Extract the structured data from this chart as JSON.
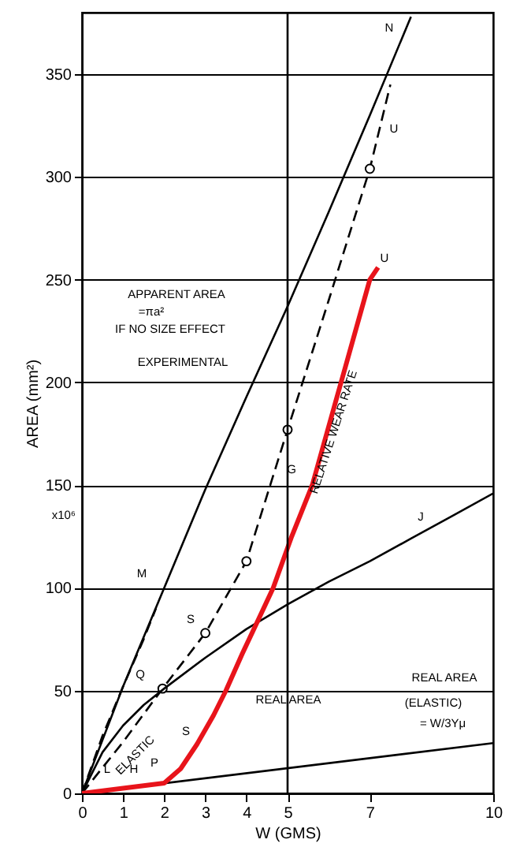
{
  "chart_data": {
    "type": "line",
    "xlabel": "W (GMS)",
    "ylabel": "AREA (mm²)",
    "xlim": [
      0,
      10
    ],
    "ylim": [
      0,
      380
    ],
    "xticks": [
      0,
      1,
      2,
      3,
      4,
      5,
      7,
      10
    ],
    "yticks": [
      0,
      50,
      100,
      150,
      200,
      250,
      300,
      350
    ],
    "grid": "y",
    "ref_lines": [
      {
        "axis": "x",
        "value": 5,
        "color": "#000000",
        "line_style": "solid"
      }
    ],
    "series": [
      {
        "color": "#000000",
        "line_style": "solid",
        "x": [
          0,
          1,
          2,
          3,
          4,
          5,
          6,
          7,
          8
        ],
        "values": [
          0,
          52,
          100,
          148,
          193,
          237,
          283,
          330,
          378
        ]
      },
      {
        "type": "line",
        "color": "#000000",
        "line_style": "dashed",
        "x": [
          0,
          0.5,
          1,
          1.5,
          1.8
        ],
        "values": [
          0,
          28,
          52,
          75,
          90
        ]
      },
      {
        "type": "line",
        "color": "#000000",
        "line_style": "dashed",
        "x": [
          0,
          1,
          1.96,
          3,
          4,
          5,
          6,
          7,
          7.5
        ],
        "values": [
          0,
          25,
          51,
          78,
          113,
          177,
          240,
          304,
          345
        ]
      },
      {
        "type": "scatter",
        "color": "#000000",
        "marker": "circle",
        "x": [
          1.96,
          3,
          4,
          5,
          7
        ],
        "values": [
          51,
          78,
          113,
          177,
          304
        ]
      },
      {
        "type": "line",
        "color": "#000000",
        "line_style": "solid",
        "x": [
          0,
          0.5,
          1,
          1.5,
          2,
          3,
          4,
          5,
          6,
          7,
          8,
          9,
          10
        ],
        "values": [
          0,
          20,
          33,
          43,
          51,
          66,
          80,
          92,
          103,
          113,
          124,
          135,
          146
        ]
      },
      {
        "type": "line",
        "color": "#000000",
        "line_style": "solid",
        "x": [
          0,
          10
        ],
        "values": [
          0,
          24.5
        ]
      },
      {
        "type": "line",
        "color": "#e8141b",
        "line_style": "solid",
        "x": [
          0,
          1,
          2,
          2.4,
          2.8,
          3.2,
          3.5,
          3.9,
          4.3,
          4.65,
          5.1,
          5.6,
          6.3,
          7.0,
          7.2
        ],
        "values": [
          0,
          2.5,
          5,
          12,
          24,
          38,
          50,
          68,
          85,
          100,
          125,
          150,
          200,
          250,
          256
        ]
      }
    ],
    "annotations": [
      "x10⁶",
      "N",
      "U",
      "U",
      "M",
      "S",
      "G",
      "J",
      "Q",
      "S",
      "L",
      "H",
      "P",
      "APPARENT AREA",
      "=πa²",
      "IF NO SIZE EFFECT",
      "EXPERIMENTAL",
      "RELATIVE WEAR RATE",
      "REAL AREA",
      "REAL AREA",
      "(ELASTIC)",
      "= W/3Yμ",
      "ELASTIC"
    ]
  }
}
